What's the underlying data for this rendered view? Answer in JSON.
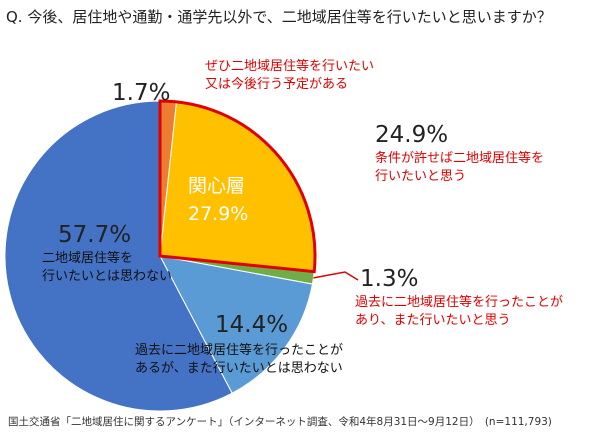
{
  "title": "Q. 今後、居住地や通勤・通学先以外で、二地域居住等を行いたいと思いますか？",
  "chart_data": {
    "type": "pie",
    "start": "top",
    "direction": "clockwise",
    "slices": [
      {
        "label": "ぜひ二地域居住等を行いたい又は今後行う予定がある",
        "value": 1.7,
        "pct": "1.7%",
        "l1": "ぜひ二地域居住等を行いたい",
        "l2": "又は今後行う予定がある",
        "color": "#ED7D31"
      },
      {
        "label": "条件が許せば二地域居住等を行いたいと思う",
        "value": 24.9,
        "pct": "24.9%",
        "l1": "条件が許せば二地域居住等を",
        "l2": "行いたいと思う",
        "color": "#FFC000"
      },
      {
        "label": "過去に二地域居住等を行ったことがあり、また行いたいと思う",
        "value": 1.3,
        "pct": "1.3%",
        "l1": "過去に二地域居住等を行ったことが",
        "l2": "あり、また行いたいと思う",
        "color": "#70AD47"
      },
      {
        "label": "過去に二地域居住等を行ったことがあるが、また行いたいとは思わない",
        "value": 14.4,
        "pct": "14.4%",
        "l1": "過去に二地域居住等を行ったことが",
        "l2": "あるが、また行いたいとは思わない",
        "color": "#5B9BD5"
      },
      {
        "label": "二地域居住等を行いたいとは思わない",
        "value": 57.7,
        "pct": "57.7%",
        "l1": "二地域居住等を",
        "l2": "行いたいとは思わない",
        "color": "#4472C4"
      }
    ],
    "group": {
      "label": "関心層",
      "pct": "27.9%",
      "outline_color": "#E00000"
    }
  },
  "footer": "国土交通省「二地域居住に関するアンケート」（インターネット調査、令和4年8月31日～9月12日）　(n=111,793)"
}
